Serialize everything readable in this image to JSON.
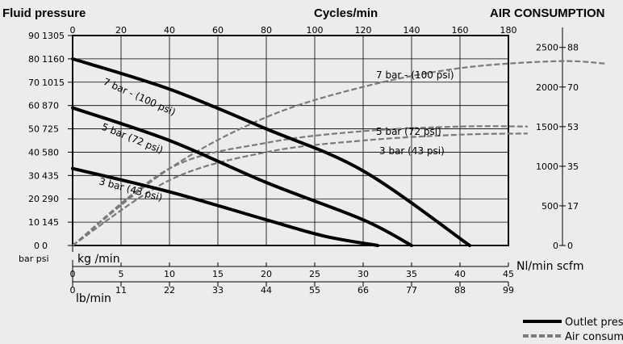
{
  "headers": {
    "left": "Fluid pressure",
    "center": "Cycles/min",
    "right": "AIR CONSUMPTION"
  },
  "chart_data": {
    "type": "line",
    "axes": {
      "top": {
        "label": "Cycles/min",
        "range": [
          0,
          180
        ],
        "ticks": [
          0,
          20,
          40,
          60,
          80,
          100,
          120,
          140,
          160,
          180
        ]
      },
      "left_bar": {
        "range": [
          0,
          90
        ],
        "ticks": [
          0,
          10,
          20,
          30,
          40,
          50,
          60,
          70,
          80,
          90
        ],
        "unit": "bar"
      },
      "left_psi": {
        "ticks": [
          "0",
          "145",
          "290",
          "435",
          "580",
          "725",
          "870",
          "1015",
          "1160",
          "1305"
        ],
        "unit": "psi"
      },
      "bottom_kg": {
        "label": "kg /min",
        "range": [
          0,
          45
        ],
        "ticks": [
          0,
          5,
          10,
          15,
          20,
          25,
          30,
          35,
          40,
          45
        ]
      },
      "bottom_lb": {
        "label": "lb/min",
        "ticks": [
          "0",
          "11",
          "22",
          "33",
          "44",
          "55",
          "66",
          "77",
          "88",
          "99"
        ]
      },
      "right_nl": {
        "range": [
          0,
          2650
        ],
        "ticks": [
          "0",
          "500",
          "1000",
          "1500",
          "2000",
          "2500"
        ],
        "unit": "Nl/min"
      },
      "right_scfm": {
        "ticks": [
          "0",
          "17",
          "35",
          "53",
          "70",
          "88"
        ],
        "unit": "scfm"
      },
      "bottom_units": "Nl/min scfm",
      "left_units": "bar psi"
    },
    "outlet_pressure": [
      {
        "label": "7 bar - (100 psi)",
        "points": [
          [
            0,
            80
          ],
          [
            10,
            67
          ],
          [
            20,
            50
          ],
          [
            30,
            32
          ],
          [
            41,
            0
          ]
        ]
      },
      {
        "label": "5 bar (72 psi)",
        "points": [
          [
            0,
            59
          ],
          [
            10,
            45
          ],
          [
            20,
            27
          ],
          [
            30,
            11
          ],
          [
            35,
            0
          ]
        ]
      },
      {
        "label": "3 bar (43 psi)",
        "points": [
          [
            0,
            33
          ],
          [
            10,
            23
          ],
          [
            20,
            11
          ],
          [
            26,
            4
          ],
          [
            31.5,
            0
          ]
        ]
      }
    ],
    "air_consumption": [
      {
        "label": "7 bar - (100 psi)",
        "points": [
          [
            0,
            0
          ],
          [
            10,
            33
          ],
          [
            20,
            55
          ],
          [
            30,
            68
          ],
          [
            40,
            76
          ],
          [
            50,
            79
          ],
          [
            55,
            78
          ]
        ]
      },
      {
        "label": "5 bar (72 psi)",
        "points": [
          [
            0,
            0
          ],
          [
            10,
            33
          ],
          [
            20,
            44
          ],
          [
            30,
            49
          ],
          [
            40,
            51
          ],
          [
            47,
            51
          ]
        ]
      },
      {
        "label": "3 bar (43 psi)",
        "points": [
          [
            0,
            0
          ],
          [
            10,
            28
          ],
          [
            20,
            40
          ],
          [
            30,
            45
          ],
          [
            40,
            47.5
          ],
          [
            47,
            48
          ]
        ]
      }
    ],
    "legend": [
      {
        "label": "Outlet pressure",
        "style": "solid",
        "color": "#000000"
      },
      {
        "label": "Air consumption",
        "style": "dashed",
        "color": "#7a7a7a"
      }
    ]
  }
}
